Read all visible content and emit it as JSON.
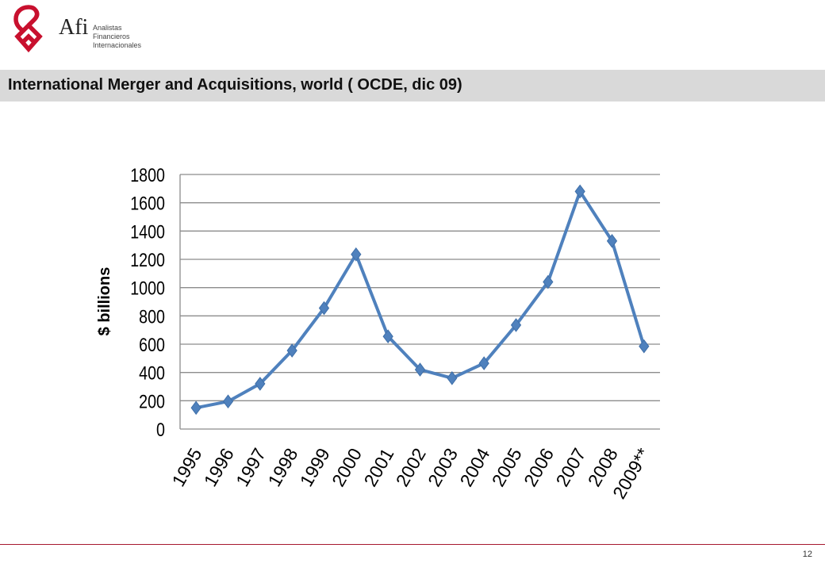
{
  "header": {
    "logo_word": "Afi",
    "logo_sub_lines": [
      "Analistas",
      "Financieros",
      "Internacionales"
    ],
    "brand_color": "#c8102e"
  },
  "title": "International Merger and Acquisitions, world ( OCDE, dic 09)",
  "chart_data": {
    "type": "line",
    "title": "",
    "xlabel": "",
    "ylabel": "$ billions",
    "ylim": [
      0,
      1800
    ],
    "yticks": [
      0,
      200,
      400,
      600,
      800,
      1000,
      1200,
      1400,
      1600,
      1800
    ],
    "grid": true,
    "categories": [
      "1995",
      "1996",
      "1997",
      "1998",
      "1999",
      "2000",
      "2001",
      "2002",
      "2003",
      "2004",
      "2005",
      "2006",
      "2007",
      "2008",
      "2009**"
    ],
    "series": [
      {
        "color": "#4f81bd",
        "marker": "diamond",
        "values": [
          150,
          195,
          320,
          555,
          855,
          1235,
          655,
          420,
          360,
          465,
          735,
          1040,
          1680,
          1330,
          585
        ]
      }
    ]
  },
  "footer": {
    "page_number": "12",
    "line_color": "#a6192e"
  }
}
